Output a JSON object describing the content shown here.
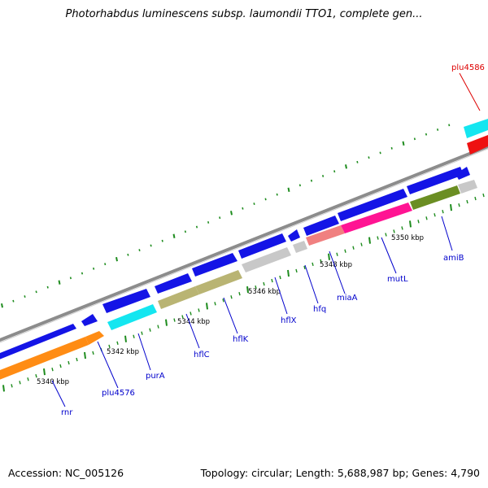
{
  "title": "Photorhabdus luminescens subsp. laumondii TTO1, complete gen...",
  "footer": {
    "accession": "Accession: NC_005126",
    "summary": "Topology: circular; Length: 5,688,987 bp; Genes: 4,790"
  },
  "colors": {
    "dark_blue": "#1414e6",
    "orange": "#ff8c14",
    "cyan": "#14e6f0",
    "khaki": "#b9b473",
    "silver": "#c8c8c8",
    "salmon": "#f08080",
    "magenta": "#ff1493",
    "olive": "#6b8e23",
    "red": "#ee1111",
    "backbone": "#888888",
    "tick": "#228b22",
    "label_blue": "#0000cc",
    "label_red": "#dd0000"
  },
  "ruler": [
    {
      "label": "5340 kbp"
    },
    {
      "label": "5342 kbp"
    },
    {
      "label": "5344 kbp"
    },
    {
      "label": "5346 kbp"
    },
    {
      "label": "5348 kbp"
    },
    {
      "label": "5350 kbp"
    }
  ],
  "gene_labels": [
    {
      "name": "rnr",
      "color": "label_blue"
    },
    {
      "name": "plu4576",
      "color": "label_blue"
    },
    {
      "name": "purA",
      "color": "label_blue"
    },
    {
      "name": "hflC",
      "color": "label_blue"
    },
    {
      "name": "hflK",
      "color": "label_blue"
    },
    {
      "name": "hflX",
      "color": "label_blue"
    },
    {
      "name": "hfq",
      "color": "label_blue"
    },
    {
      "name": "miaA",
      "color": "label_blue"
    },
    {
      "name": "mutL",
      "color": "label_blue"
    },
    {
      "name": "amiB",
      "color": "label_blue"
    },
    {
      "name": "plu4586",
      "color": "label_red"
    }
  ]
}
